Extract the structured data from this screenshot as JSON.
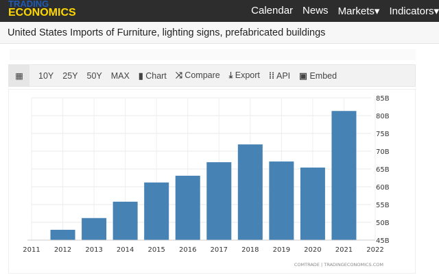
{
  "header": {
    "logo_top": "TRADING",
    "logo_bottom": "ECONOMICS",
    "nav": [
      "Calendar",
      "News",
      "Markets▾",
      "Indicators▾"
    ]
  },
  "page_title": "United States Imports of Furniture, lighting signs, prefabricated buildings",
  "toolbar": {
    "items": [
      "10Y",
      "25Y",
      "50Y",
      "MAX",
      "Chart",
      "Compare",
      "Export",
      "API",
      "Embed"
    ],
    "icons": [
      "calendar-icon",
      "",
      "",
      "",
      "",
      "bar-chart-icon",
      "shuffle-icon",
      "download-icon",
      "grid-icon",
      "image-icon"
    ]
  },
  "colors": {
    "bar": "#4682b4",
    "header": "#2d2d2d"
  },
  "chart_data": {
    "type": "bar",
    "categories": [
      "2012",
      "2013",
      "2014",
      "2015",
      "2016",
      "2017",
      "2018",
      "2019",
      "2020",
      "2021"
    ],
    "values": [
      47.9,
      51.2,
      55.8,
      61.2,
      63.1,
      66.9,
      71.9,
      67.1,
      65.4,
      81.3
    ],
    "x_ticks": [
      "2011",
      "2012",
      "2013",
      "2014",
      "2015",
      "2016",
      "2017",
      "2018",
      "2019",
      "2020",
      "2021",
      "2022"
    ],
    "y_ticks": [
      "45B",
      "50B",
      "55B",
      "60B",
      "65B",
      "70B",
      "75B",
      "80B",
      "85B"
    ],
    "ylim": [
      45,
      85
    ],
    "grid": true,
    "y_axis_side": "right",
    "source": "COMTRADE | TRADINGECONOMICS.COM"
  }
}
